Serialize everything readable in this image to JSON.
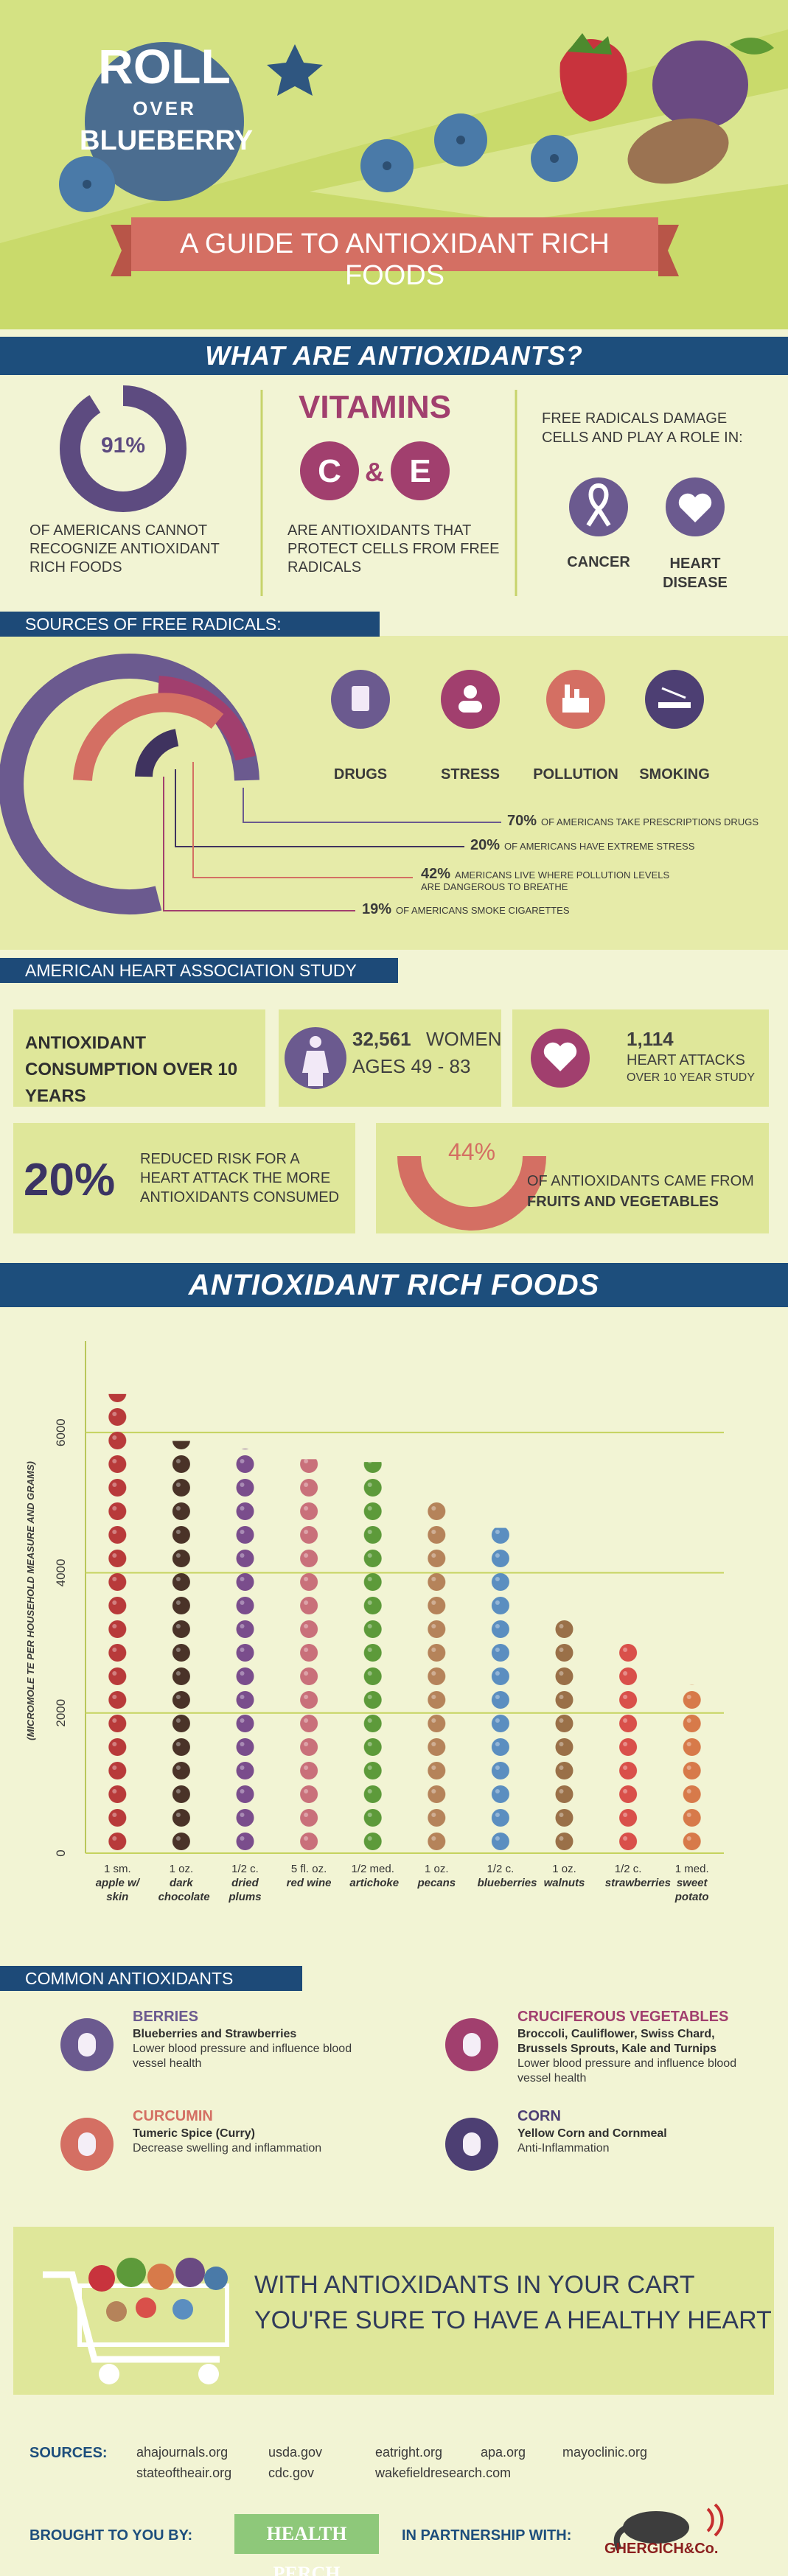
{
  "header": {
    "title_line1": "ROLL",
    "title_line2": "OVER",
    "title_line3": "BLUEBERRY",
    "subtitle": "A GUIDE TO ANTIOXIDANT RICH FOODS"
  },
  "what": {
    "heading": "WHAT ARE ANTIOXIDANTS?",
    "stat": "91%",
    "stat_text": "OF AMERICANS CANNOT RECOGNIZE ANTIOXIDANT RICH FOODS",
    "vitamins_title": "VITAMINS",
    "vitamin_c": "C",
    "amp": "&",
    "vitamin_e": "E",
    "vitamins_text": "ARE ANTIOXIDANTS THAT PROTECT CELLS FROM FREE RADICALS",
    "radicals_text": "FREE RADICALS DAMAGE CELLS AND PLAY A ROLE IN:",
    "diseases": [
      "CANCER",
      "HEART DISEASE"
    ]
  },
  "sources": {
    "heading": "SOURCES OF FREE RADICALS:",
    "items": [
      "DRUGS",
      "STRESS",
      "POLLUTION",
      "SMOKING"
    ],
    "stats": [
      {
        "value": "70%",
        "text": "OF AMERICANS TAKE PRESCRIPTIONS DRUGS"
      },
      {
        "value": "20%",
        "text": "OF AMERICANS HAVE  EXTREME STRESS"
      },
      {
        "value": "42%",
        "text": "AMERICANS LIVE WHERE POLLUTION LEVELS ARE DANGEROUS TO BREATHE"
      },
      {
        "value": "19%",
        "text": "OF AMERICANS SMOKE CIGARETTES"
      }
    ]
  },
  "study": {
    "heading": "AMERICAN HEART ASSOCIATION STUDY",
    "consumption": "ANTIOXIDANT CONSUMPTION OVER 10 YEARS",
    "women_count": "32,561",
    "women_label": "WOMEN",
    "women_ages": "AGES 49 - 83",
    "attacks": "1,114",
    "attacks_label": "HEART ATTACKS",
    "attacks_sub": "OVER 10 YEAR STUDY",
    "risk": "20%",
    "risk_text": "REDUCED RISK FOR A HEART ATTACK THE MORE ANTIOXIDANTS CONSUMED",
    "fruit_pct": "44%",
    "fruit_text": "OF ANTIOXIDANTS CAME FROM",
    "fruit_bold": "FRUITS AND VEGETABLES"
  },
  "chart_data": {
    "type": "bar",
    "title": "ANTIOXIDANT RICH FOODS",
    "y_label": "(MICROMOLE TE PER HOUSEHOLD MEASURE AND GRAMS)",
    "measures": [
      "1 sm.",
      "1 oz.",
      "1/2 c.",
      "5 fl. oz.",
      "1/2 med.",
      "1 oz.",
      "1/2 c.",
      "1 oz.",
      "1/2 c.",
      "1 med."
    ],
    "categories": [
      "apple w/ skin",
      "dark chocolate",
      "dried plums",
      "red wine",
      "artichoke",
      "pecans",
      "blueberries",
      "walnuts",
      "strawberries",
      "sweet potato"
    ],
    "values": [
      6550,
      5880,
      5770,
      5620,
      5580,
      5010,
      4640,
      3390,
      3060,
      2400
    ],
    "colors": [
      "#b83a3a",
      "#4a3328",
      "#7a4d8c",
      "#c9707a",
      "#5d9a3a",
      "#b5835a",
      "#5b8ec0",
      "#9a7048",
      "#d9504a",
      "#d77a4a"
    ],
    "ylim": [
      0,
      7200
    ],
    "yticks": [
      0,
      2000,
      4000,
      6000
    ],
    "grid": true
  },
  "common": {
    "heading": "COMMON ANTIOXIDANTS",
    "items": [
      {
        "name": "BERRIES",
        "foods": "Blueberries and Strawberries",
        "text": "Lower blood pressure and influence blood vessel health"
      },
      {
        "name": "CURCUMIN",
        "foods": "Tumeric Spice (Curry)",
        "text": "Decrease swelling and inflammation"
      },
      {
        "name": "CRUCIFEROUS VEGETABLES",
        "foods": "Broccoli, Cauliflower, Swiss Chard, Brussels Sprouts, Kale and Turnips",
        "text": "Lower blood pressure and influence blood vessel health"
      },
      {
        "name": "CORN",
        "foods": "Yellow Corn and Cornmeal",
        "text": "Anti-Inflammation"
      }
    ]
  },
  "cart": {
    "line1": "WITH ANTIOXIDANTS IN YOUR CART",
    "line2": "YOU'RE SURE TO HAVE A HEALTHY HEART"
  },
  "footer": {
    "sources_label": "SOURCES:",
    "sources": [
      "ahajournals.org",
      "usda.gov",
      "eatright.org",
      "apa.org",
      "mayoclinic.org",
      "stateoftheair.org",
      "cdc.gov",
      "wakefieldresearch.com"
    ],
    "brought": "BROUGHT TO YOU BY:",
    "brand": "HEALTH PERCH",
    "partnership": "IN PARTNERSHIP WITH:",
    "partner": "GHERGICH&Co."
  }
}
